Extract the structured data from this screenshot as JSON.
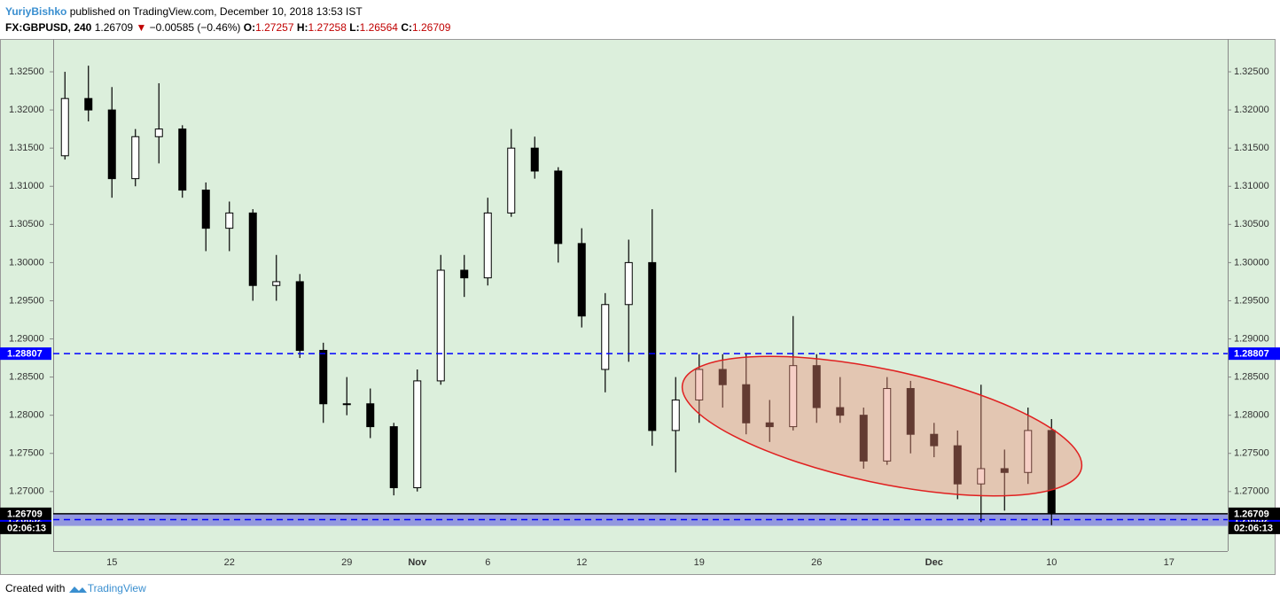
{
  "header": {
    "author": "YuriyBishko",
    "published": "published on TradingView.com, December 10, 2018 13:53 IST",
    "symbol": "FX:GBPUSD, 240",
    "last": "1.26709",
    "change": "−0.00585 (−0.46%)",
    "ohlc": [
      {
        "label": "O:",
        "value": "1.27257"
      },
      {
        "label": "H:",
        "value": "1.27258"
      },
      {
        "label": "L:",
        "value": "1.26564"
      },
      {
        "label": "C:",
        "value": "1.26709"
      }
    ]
  },
  "chart_data": {
    "type": "candlestick",
    "categories": [
      null,
      null,
      "15",
      null,
      null,
      null,
      null,
      "22",
      null,
      null,
      null,
      null,
      "29",
      null,
      null,
      "Nov",
      null,
      null,
      "6",
      null,
      null,
      null,
      "12",
      null,
      null,
      null,
      null,
      "19",
      null,
      null,
      null,
      null,
      "26",
      null,
      null,
      null,
      null,
      "Dec",
      null,
      null,
      null,
      null,
      "10",
      null,
      null,
      null,
      null,
      "17",
      null,
      null
    ],
    "open": [
      1.314,
      1.3215,
      1.32,
      1.311,
      1.3165,
      1.3175,
      1.3095,
      1.3045,
      1.3065,
      1.297,
      1.2975,
      1.2885,
      1.2815,
      1.2815,
      1.2785,
      1.2705,
      1.2845,
      1.299,
      1.298,
      1.3065,
      1.315,
      1.312,
      1.3025,
      1.286,
      1.2945,
      1.3,
      1.278,
      1.282,
      1.286,
      1.284,
      1.279,
      1.2785,
      1.2865,
      1.281,
      1.28,
      1.274,
      1.2835,
      1.2775,
      1.276,
      1.271,
      1.273,
      1.2725,
      1.278,
      null,
      null,
      null,
      null,
      null,
      null,
      null
    ],
    "high": [
      1.325,
      1.3258,
      1.323,
      1.3175,
      1.3235,
      1.318,
      1.3105,
      1.308,
      1.307,
      1.301,
      1.2985,
      1.2895,
      1.285,
      1.2835,
      1.279,
      1.286,
      1.301,
      1.301,
      1.3085,
      1.3175,
      1.3165,
      1.3125,
      1.3045,
      1.296,
      1.303,
      1.307,
      1.285,
      1.288,
      1.288,
      1.288,
      1.282,
      1.293,
      1.288,
      1.285,
      1.281,
      1.285,
      1.2845,
      1.279,
      1.278,
      1.284,
      1.2755,
      1.281,
      1.2795,
      null,
      null,
      null,
      null,
      null,
      null,
      null
    ],
    "low": [
      1.3135,
      1.3185,
      1.3085,
      1.31,
      1.313,
      1.3085,
      1.3015,
      1.3015,
      1.295,
      1.295,
      1.2875,
      1.279,
      1.28,
      1.277,
      1.2695,
      1.27,
      1.284,
      1.2955,
      1.297,
      1.306,
      1.311,
      1.3,
      1.2915,
      1.283,
      1.287,
      1.276,
      1.2725,
      1.279,
      1.281,
      1.2775,
      1.2765,
      1.278,
      1.279,
      1.279,
      1.273,
      1.2735,
      1.275,
      1.2745,
      1.269,
      1.266,
      1.2675,
      1.271,
      1.2656,
      null,
      null,
      null,
      null,
      null,
      null,
      null
    ],
    "close": [
      1.3215,
      1.32,
      1.311,
      1.3165,
      1.3175,
      1.3095,
      1.3045,
      1.3065,
      1.297,
      1.2975,
      1.2885,
      1.2815,
      1.2815,
      1.2785,
      1.2705,
      1.2845,
      1.299,
      1.298,
      1.3065,
      1.315,
      1.312,
      1.3025,
      1.293,
      1.2945,
      1.3,
      1.278,
      1.282,
      1.286,
      1.284,
      1.279,
      1.2785,
      1.2865,
      1.281,
      1.28,
      1.274,
      1.2835,
      1.2775,
      1.276,
      1.271,
      1.273,
      1.2725,
      1.278,
      1.26709,
      null,
      null,
      null,
      null,
      null,
      null,
      null
    ],
    "up_color": "#ffffff",
    "down_color": "#000000",
    "wick_color": "#000000",
    "background": "#dcefdc",
    "ylim": [
      1.2622,
      1.3293
    ],
    "yticks": [
      {
        "value": 1.27,
        "label": "1.27000"
      },
      {
        "value": 1.275,
        "label": "1.27500"
      },
      {
        "value": 1.28,
        "label": "1.28000"
      },
      {
        "value": 1.285,
        "label": "1.28500"
      },
      {
        "value": 1.29,
        "label": "1.29000"
      },
      {
        "value": 1.295,
        "label": "1.29500"
      },
      {
        "value": 1.3,
        "label": "1.30000"
      },
      {
        "value": 1.305,
        "label": "1.30500"
      },
      {
        "value": 1.31,
        "label": "1.31000"
      },
      {
        "value": 1.315,
        "label": "1.31500"
      },
      {
        "value": 1.32,
        "label": "1.32000"
      },
      {
        "value": 1.325,
        "label": "1.32500"
      }
    ],
    "zone": {
      "from": 1.2655,
      "to": 1.2671,
      "color": "#7b7be0"
    },
    "levels": [
      {
        "value": 1.28807,
        "color": "#0000ff",
        "dashed": true
      },
      {
        "value": 1.26632,
        "color": "#0000ff",
        "dashed": true
      },
      {
        "value": 1.26709,
        "color": "#000000",
        "dashed": false
      }
    ],
    "countdown": "02:06:13"
  },
  "footer": {
    "created": "Created with",
    "brand": "TradingView"
  }
}
